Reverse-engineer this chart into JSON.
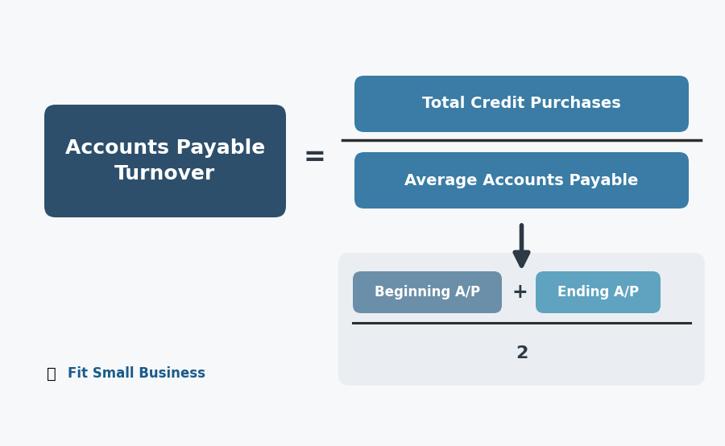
{
  "bg_color": "#f7f8fa",
  "dark_box_color": "#2d4f6b",
  "teal_box_color": "#3a7ca5",
  "light_box_color": "#6b8fa8",
  "lighter_box_color": "#5fa3c0",
  "sub_bg_color": "#eaeef2",
  "line_color": "#2d2d2d",
  "text_color_white": "#ffffff",
  "text_color_dark": "#2d3a45",
  "arrow_color": "#2d3a45",
  "left_box_text": "Accounts Payable\nTurnover",
  "equals_sign": "=",
  "numerator_text": "Total Credit Purchases",
  "denominator_text": "Average Accounts Payable",
  "beginning_ap_text": "Beginning A/P",
  "plus_sign": "+",
  "ending_ap_text": "Ending A/P",
  "divisor_text": "2",
  "brand_text": "Fit Small Business",
  "brand_color": "#1b5b8a",
  "fig_width": 9.0,
  "fig_height": 5.54,
  "dpi": 100
}
